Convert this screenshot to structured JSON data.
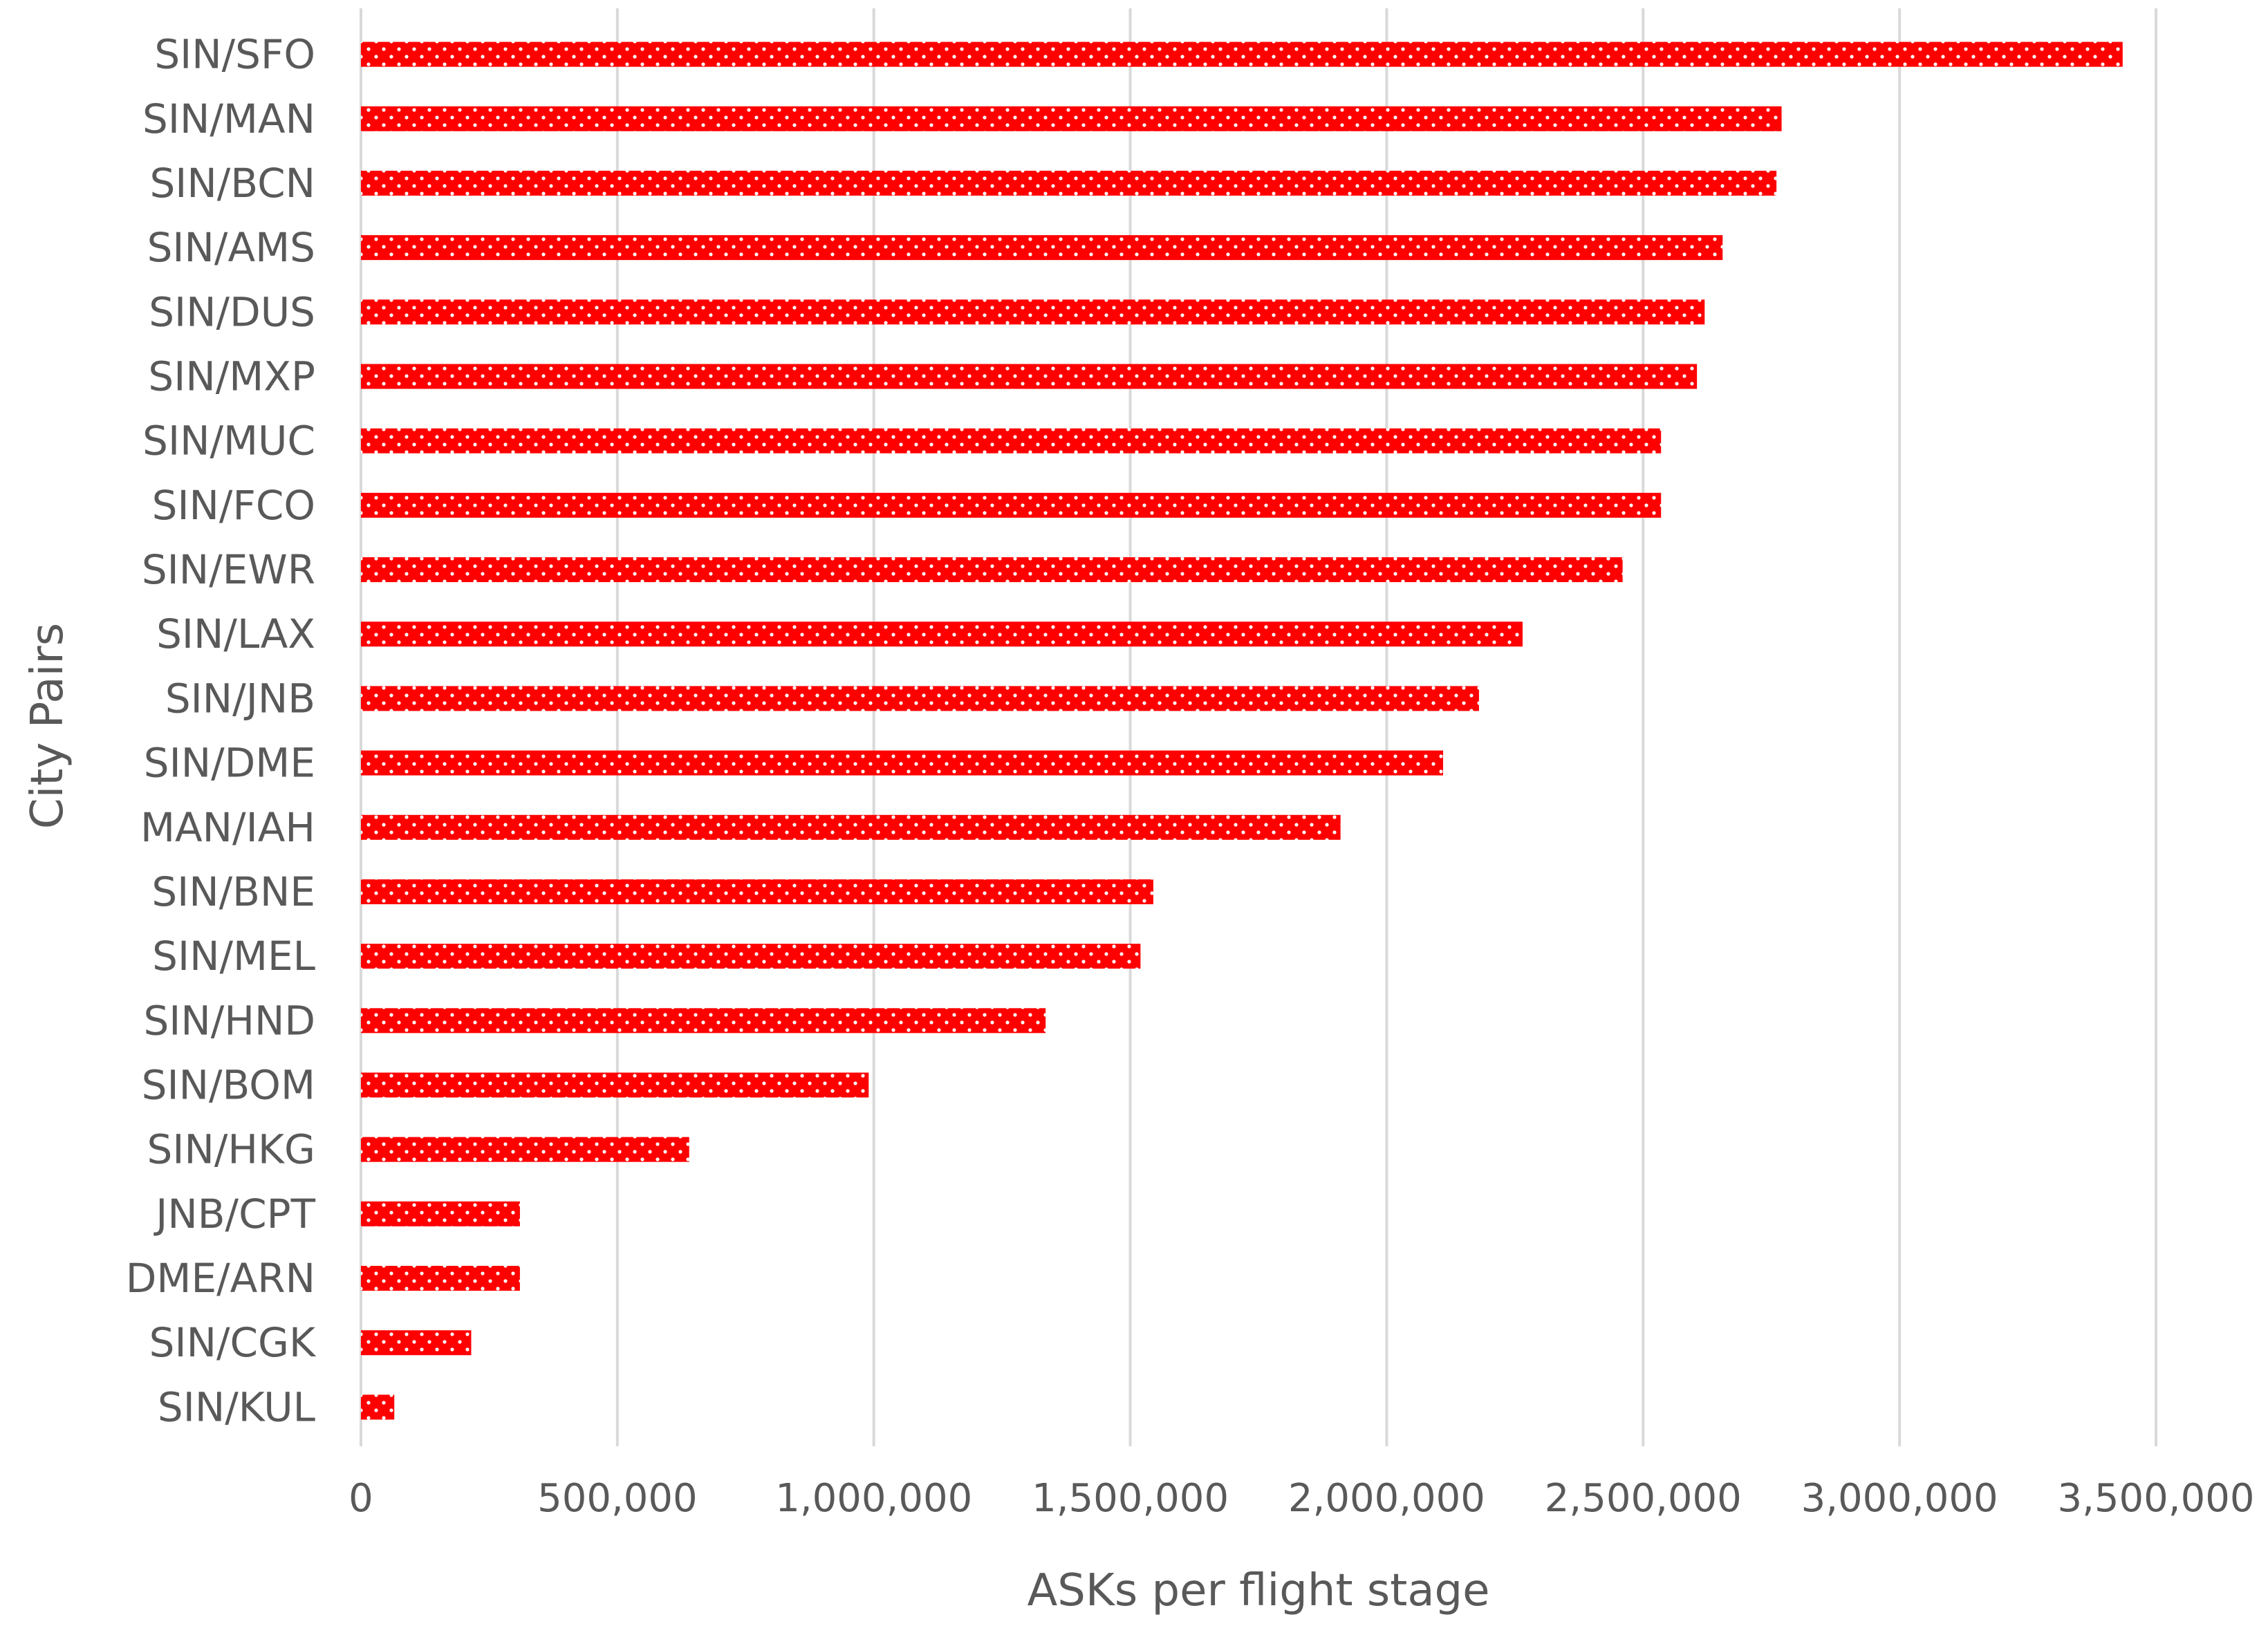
{
  "chart_data": {
    "type": "bar",
    "orientation": "horizontal",
    "title": "",
    "xlabel": "ASKs per flight stage",
    "ylabel": "City Pairs",
    "xlim": [
      0,
      3500000
    ],
    "x_ticks": [
      0,
      500000,
      1000000,
      1500000,
      2000000,
      2500000,
      3000000,
      3500000
    ],
    "x_tick_labels": [
      "0",
      "500,000",
      "1,000,000",
      "1,500,000",
      "2,000,000",
      "2,500,000",
      "3,000,000",
      "3,500,000"
    ],
    "grid": "vertical",
    "legend": "none",
    "bar_color": "#ff0000",
    "bar_pattern": "dotted",
    "categories": [
      "SIN/SFO",
      "SIN/MAN",
      "SIN/BCN",
      "SIN/AMS",
      "SIN/DUS",
      "SIN/MXP",
      "SIN/MUC",
      "SIN/FCO",
      "SIN/EWR",
      "SIN/LAX",
      "SIN/JNB",
      "SIN/DME",
      "MAN/IAH",
      "SIN/BNE",
      "SIN/MEL",
      "SIN/HND",
      "SIN/BOM",
      "SIN/HKG",
      "JNB/CPT",
      "DME/ARN",
      "SIN/CGK",
      "SIN/KUL"
    ],
    "values": [
      3435000,
      2770000,
      2760000,
      2655000,
      2620000,
      2605000,
      2535000,
      2535000,
      2460000,
      2265000,
      2180000,
      2110000,
      1910000,
      1545000,
      1520000,
      1335000,
      990000,
      640000,
      310000,
      310000,
      215000,
      65000
    ]
  }
}
